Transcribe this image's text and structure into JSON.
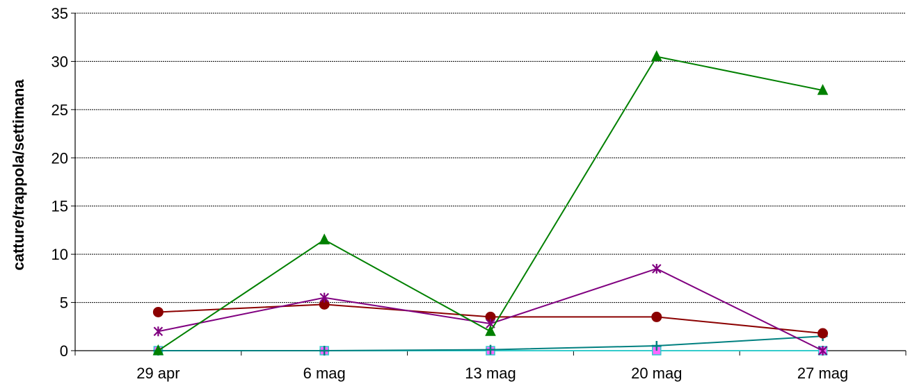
{
  "chart_data": {
    "type": "line",
    "title": "",
    "xlabel": "",
    "ylabel": "catture/trappola/settimana",
    "categories": [
      "29 apr",
      "6 mag",
      "13 mag",
      "20 mag",
      "27 mag"
    ],
    "ylim": [
      0,
      35
    ],
    "yticks": [
      0,
      5,
      10,
      15,
      20,
      25,
      30,
      35
    ],
    "grid": true,
    "legend": "none",
    "series": [
      {
        "color": "#008000",
        "marker": "triangle",
        "values": [
          0,
          11.5,
          2,
          30.5,
          27
        ]
      },
      {
        "color": "#800080",
        "marker": "star",
        "values": [
          2,
          5.5,
          2.8,
          8.5,
          0
        ]
      },
      {
        "color": "#8B0000",
        "marker": "circle",
        "values": [
          4,
          4.8,
          3.5,
          3.5,
          1.8
        ]
      },
      {
        "color": "#008080",
        "marker": "plus",
        "values": [
          0,
          0,
          0.1,
          0.5,
          1.5
        ]
      },
      {
        "color": "#33CCCC",
        "marker": "square",
        "values": [
          0,
          0,
          0,
          0,
          0
        ]
      }
    ]
  }
}
